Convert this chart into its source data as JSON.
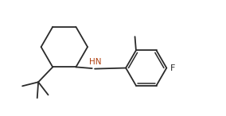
{
  "background_color": "#ffffff",
  "line_color": "#2a2a2a",
  "nh_color": "#b04010",
  "figsize": [
    2.84,
    1.46
  ],
  "dpi": 100,
  "lw": 1.3
}
